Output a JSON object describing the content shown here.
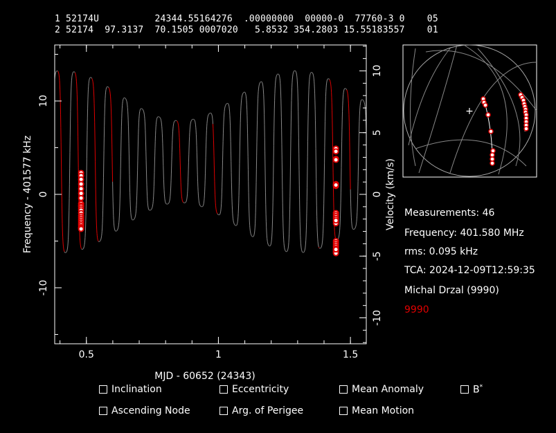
{
  "tle": {
    "line1": "1 52174U          24344.55164276  .00000000  00000-0  77760-3 0    05",
    "line2": "2 52174  97.3137  70.1505 0007020   5.8532 354.2803 15.55183557    01"
  },
  "chart_data": {
    "type": "scatter",
    "xlabel": "MJD - 60652 (24343)",
    "ylabel": "Frequency - 401577 kHz",
    "y2label": "Velocity (km/s)",
    "xlim": [
      0.38,
      1.56
    ],
    "ylim": [
      -16,
      16
    ],
    "y2lim": [
      -12.1,
      12.1
    ],
    "xticks": [
      0.5,
      1,
      1.5
    ],
    "xtick_labels": [
      "0.5",
      "1",
      "1.5"
    ],
    "yticks": [
      -10,
      0,
      10
    ],
    "ytick_labels": [
      "-10",
      "0",
      "10"
    ],
    "y2ticks": [
      -10,
      -5,
      0,
      5,
      10
    ],
    "y2tick_labels": [
      "-10",
      "-5",
      "0",
      "5",
      "10"
    ],
    "series": [
      {
        "x": [
          0.48,
          0.48,
          0.48,
          0.48,
          0.48,
          0.48,
          0.48,
          0.48,
          0.48,
          0.48,
          0.48,
          0.48,
          0.48,
          0.48,
          0.48,
          0.48,
          0.48,
          0.48,
          0.48,
          0.48,
          0.48,
          0.48
        ],
        "y": [
          2.3,
          2.0,
          1.6,
          1.1,
          0.6,
          0.1,
          -0.4,
          -1.0,
          -1.2,
          -1.3,
          -1.5,
          -1.7,
          -2.0,
          -2.3,
          -2.5,
          -2.7,
          -2.9,
          -3.1,
          -3.3,
          -3.5,
          -3.6,
          -3.7
        ]
      },
      {
        "x": [
          1.445,
          1.445,
          1.445,
          1.445,
          1.445,
          1.445,
          1.445,
          1.445,
          1.445,
          1.445,
          1.445,
          1.445,
          1.445,
          1.445,
          1.445,
          1.445,
          1.445,
          1.445,
          1.445,
          1.445,
          1.445,
          1.445,
          1.445,
          1.445
        ],
        "y": [
          4.9,
          4.6,
          3.8,
          3.7,
          1.1,
          0.9,
          -2.0,
          -2.2,
          -2.4,
          -2.6,
          -2.9,
          -3.1,
          -5.0,
          -5.2,
          -5.4,
          -5.6,
          -5.8,
          -6.0,
          -6.1,
          -6.2,
          -6.3,
          -5.9,
          -2.8,
          1.0
        ]
      }
    ]
  },
  "info": {
    "measurements": "Measurements: 46",
    "frequency": "Frequency: 401.580 MHz",
    "rms": "rms: 0.095 kHz",
    "tca": "TCA: 2024-12-09T12:59:35",
    "observer": "Michal Drzal (9990)",
    "station": "9990",
    "station_color": "#e00000"
  },
  "options": {
    "inclination": "Inclination",
    "eccentricity": "Eccentricity",
    "mean_anomaly": "Mean Anomaly",
    "bstar": "B",
    "bstar_sup": "*",
    "ascending_node": "Ascending Node",
    "arg_perigee": "Arg. of Perigee",
    "mean_motion": "Mean Motion"
  }
}
